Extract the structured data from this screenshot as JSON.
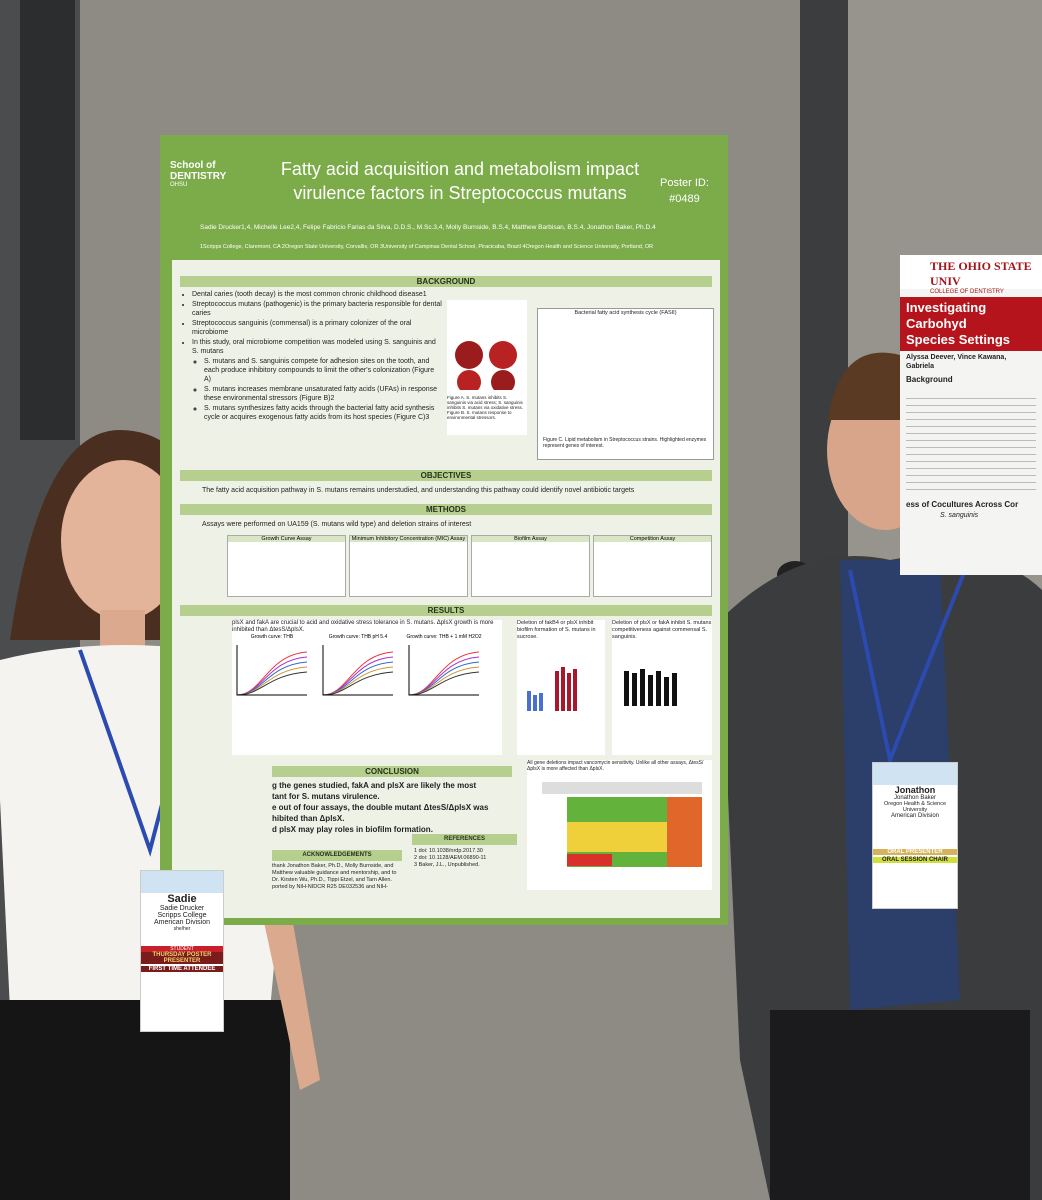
{
  "poster": {
    "school": "School of DENTISTRY",
    "ohsu": "OHSU",
    "title": [
      "Fatty acid acquisition and metabolism impact",
      "virulence factors in Streptococcus mutans"
    ],
    "poster_id_label": "Poster ID:",
    "poster_id": "#0489",
    "authors": "Sadie Drucker1,4, Michelle Lee2,4, Felipe Fabricio Farias da Silva, D.D.S., M.Sc.3,4, Molly Burnside, B.S.4, Matthew Barbisan, B.S.4, Jonathon Baker, Ph.D.4",
    "affiliations": "1Scripps College, Claremont, CA 2Oregon State University, Corvallis, OR 3University of Campinas Dental School, Piracicaba, Brazil 4Oregon Health and Science University, Portland, OR",
    "background_heading": "BACKGROUND",
    "background": [
      "Dental caries (tooth decay) is the most common chronic childhood disease1",
      "Streptococcus mutans (pathogenic) is the primary bacteria responsible for dental caries",
      "Streptococcus sanguinis (commensal) is a primary colonizer of the oral microbiome",
      "In this study, oral microbiome competition was modeled using S. sanguinis and S. mutans",
      "S. mutans and S. sanguinis compete for adhesion sites on the tooth, and each produce inhibitory compounds to limit the other's colonization (Figure A)",
      "S. mutans increases membrane unsaturated fatty acids (UFAs) in response these environmental stressors (Figure B)2",
      "S. mutans synthesizes fatty acids through the bacterial fatty acid synthesis cycle or acquires exogenous fatty acids from its host species (Figure C)3"
    ],
    "figure_a": "Figure A. S. mutans inhibits S. sanguinis via acid stress; S. sanguinis inhibits S. mutans via oxidative stress.",
    "figure_b": "Figure B. S. mutans response to environmental stressors.",
    "figure_c": "Figure C. Lipid metabolism in Streptococcus strains. Highlighted enzymes represent genes of interest.",
    "fasii": "Bacterial fatty acid synthesis cycle (FASII)",
    "objectives_heading": "OBJECTIVES",
    "objectives": "The fatty acid acquisition pathway in S. mutans remains understudied, and understanding this pathway could identify novel antibiotic targets",
    "methods_heading": "METHODS",
    "methods": "Assays were performed on UA159 (S. mutans wild type) and deletion strains of interest",
    "assays": [
      "Growth Curve Assay",
      "Minimum Inhibitory Concentration (MIC) Assay",
      "Biofilm Assay",
      "Competition Assay"
    ],
    "results_heading": "RESULTS",
    "results": [
      "plsX and fakA are crucial to acid and oxidative stress tolerance in S. mutans. ΔplsX growth is more inhibited than ΔtesS/ΔplsX.",
      "Deletion of fakB4 or plsX inhibit biofilm formation of S. mutans in sucrose.",
      "Deletion of plsX or fakA inhibit S. mutans competitiveness against commensal S. sanguinis."
    ],
    "growth_curves": [
      "Growth curve: THB",
      "Growth curve: THB pH 5.4",
      "Growth curve: THB + 1 mM H2O2"
    ],
    "mic_caption": "All gene deletions impact vancomycin sensitivity. Unlike all other assays, ΔtesS/ΔplsX is more affected than ΔplsX.",
    "conclusion_heading": "CONCLUSION",
    "conclusion": [
      "g the genes studied, fakA and plsX are likely the most",
      "tant for S. mutans virulence.",
      "e out of four assays, the double mutant ΔtesS/ΔplsX was",
      "hibited than ΔplsX.",
      "d plsX may play roles in biofilm formation."
    ],
    "ack_heading": "ACKNOWLEDGEMENTS",
    "ack": "thank Jonathon Baker, Ph.D., Molly Burnside, and Matthew valuable guidance and mentorship, and to Dr. Kirsten Wu, Ph.D., Tippi Etzel, and Tarn Allen. ported by NIH-NIDCR R25 DE032536 and NIH-",
    "ref_heading": "REFERENCES",
    "refs": [
      "1 doi: 10.1038/nrdp.2017.30",
      "2 doi: 10.1128/AEM.06890-11",
      "3 Baker, J.L., Unpublished."
    ]
  },
  "side_poster": {
    "university": "THE OHIO STATE UNIV",
    "college": "COLLEGE OF DENTISTRY",
    "title": [
      "Investigating Carbohyd",
      "Species Settings"
    ],
    "authors": "Alyssa Deever, Vince Kawana, Gabriela",
    "background_heading": "Background",
    "subheading": "ess of Cocultures Across Cor",
    "axis_label": "S. sanguinis"
  },
  "badges": [
    {
      "first": "Sadie",
      "full": "Sadie Drucker",
      "org": "Scripps College",
      "division": "American Division",
      "role": "she/her",
      "ribbons": [
        "STUDENT",
        "THURSDAY POSTER PRESENTER",
        "FIRST TIME ATTENDEE"
      ]
    },
    {
      "first": "Jonathon",
      "full": "Jonathon Baker",
      "org": "Oregon Health & Science University",
      "division": "American Division",
      "ribbons": [
        "ORAL PRESENTER",
        "ORAL SESSION CHAIR"
      ]
    }
  ]
}
